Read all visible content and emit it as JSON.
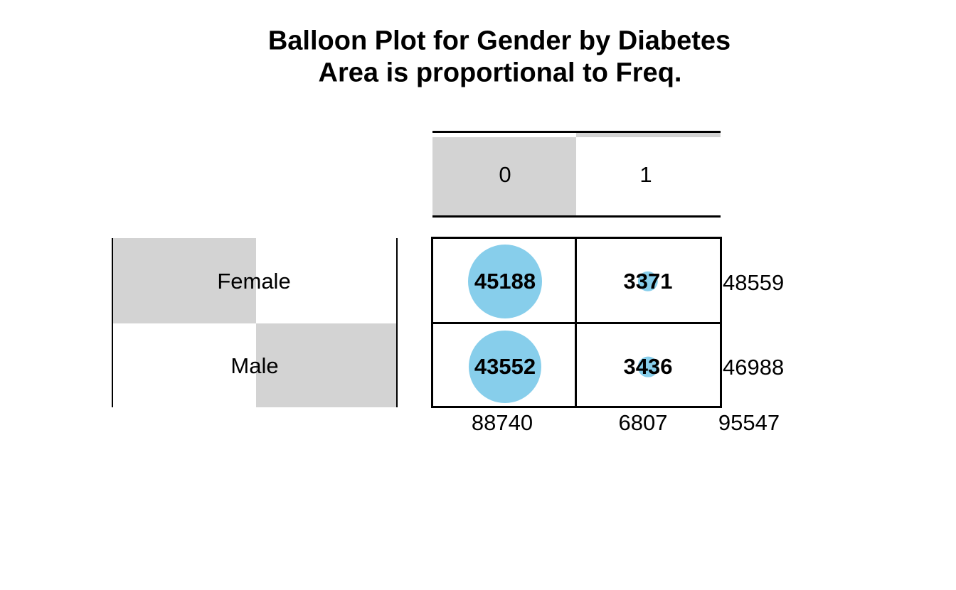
{
  "title": "Balloon Plot for Gender by Diabetes",
  "subtitle": "Area is proportional to Freq.",
  "chart_data": {
    "type": "balloon",
    "columns": [
      "0",
      "1"
    ],
    "rows": [
      "Female",
      "Male"
    ],
    "values": [
      [
        45188,
        3371
      ],
      [
        43552,
        3436
      ]
    ],
    "row_totals": [
      48559,
      46988
    ],
    "col_totals": [
      88740,
      6807
    ],
    "grand_total": 95547,
    "balloon_color": "#87CEEB",
    "label_bg_color": "#D3D3D3",
    "note": "Balloon area is proportional to cell frequency"
  }
}
